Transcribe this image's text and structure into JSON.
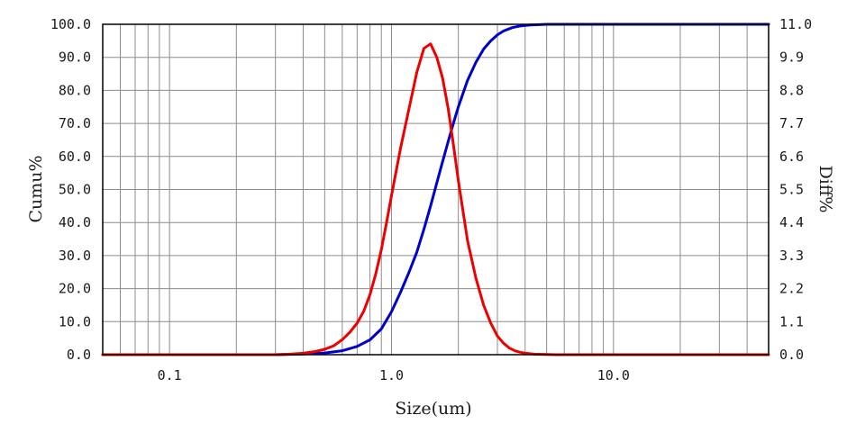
{
  "chart_data": {
    "type": "line",
    "x_scale": "log",
    "xlim": [
      0.05,
      50
    ],
    "xlabel": "Size(um)",
    "x_ticks": [
      {
        "value": 0.1,
        "label": "0.1"
      },
      {
        "value": 1.0,
        "label": "1.0"
      },
      {
        "value": 10.0,
        "label": "10.0"
      }
    ],
    "y_left": {
      "label": "Cumu%",
      "lim": [
        0,
        100
      ],
      "ticks": [
        "0.0",
        "10.0",
        "20.0",
        "30.0",
        "40.0",
        "50.0",
        "60.0",
        "70.0",
        "80.0",
        "90.0",
        "100.0"
      ]
    },
    "y_right": {
      "label": "Diff%",
      "lim": [
        0,
        11
      ],
      "ticks": [
        "0.0",
        "1.1",
        "2.2",
        "3.3",
        "4.4",
        "5.5",
        "6.6",
        "7.7",
        "8.8",
        "9.9",
        "11.0"
      ]
    },
    "grid": true,
    "series": [
      {
        "axis": "left",
        "color": "#0000cc",
        "x": [
          0.05,
          0.3,
          0.4,
          0.5,
          0.6,
          0.7,
          0.8,
          0.9,
          1.0,
          1.1,
          1.2,
          1.3,
          1.4,
          1.5,
          1.6,
          1.7,
          1.8,
          1.9,
          2.0,
          2.2,
          2.4,
          2.6,
          2.8,
          3.0,
          3.2,
          3.5,
          3.8,
          4.2,
          4.6,
          5.0,
          5.5,
          6.0,
          7.0,
          8.0,
          10.0,
          20.0,
          50.0
        ],
        "values": [
          0,
          0,
          0.2,
          0.5,
          1.2,
          2.5,
          4.5,
          7.8,
          13,
          19,
          25,
          31,
          38,
          45,
          52,
          58.5,
          64.5,
          70,
          75,
          83,
          88.5,
          92.5,
          95,
          96.8,
          98,
          99,
          99.5,
          99.8,
          99.9,
          100,
          100,
          100,
          100,
          100,
          100,
          100,
          100
        ]
      },
      {
        "axis": "right",
        "color": "#ee0000",
        "x": [
          0.05,
          0.3,
          0.35,
          0.4,
          0.45,
          0.5,
          0.55,
          0.6,
          0.65,
          0.7,
          0.75,
          0.8,
          0.85,
          0.9,
          0.95,
          1.0,
          1.1,
          1.2,
          1.3,
          1.4,
          1.5,
          1.6,
          1.7,
          1.8,
          1.9,
          2.0,
          2.2,
          2.4,
          2.6,
          2.8,
          3.0,
          3.2,
          3.4,
          3.6,
          3.8,
          4.0,
          4.4,
          4.8,
          5.5,
          6.5,
          7.5,
          10.0,
          50.0
        ],
        "values": [
          0,
          0,
          0.02,
          0.05,
          0.1,
          0.18,
          0.3,
          0.5,
          0.75,
          1.05,
          1.45,
          2.0,
          2.7,
          3.5,
          4.4,
          5.3,
          6.9,
          8.2,
          9.4,
          10.2,
          10.35,
          9.9,
          9.2,
          8.2,
          7.0,
          5.8,
          3.8,
          2.55,
          1.65,
          1.05,
          0.62,
          0.38,
          0.22,
          0.13,
          0.08,
          0.05,
          0.02,
          0.01,
          0,
          0,
          0,
          0,
          0
        ]
      }
    ]
  }
}
